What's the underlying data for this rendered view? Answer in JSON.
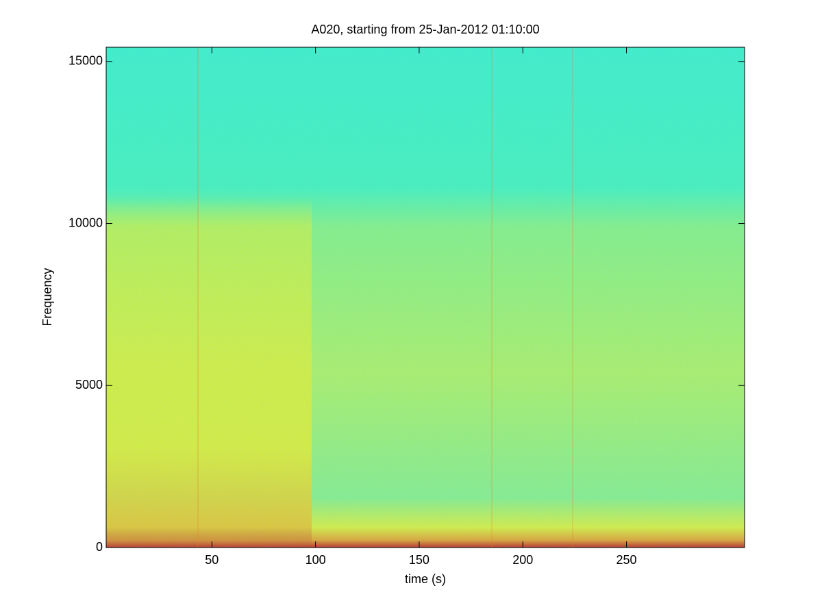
{
  "chart_data": {
    "type": "spectrogram",
    "title": "A020, starting from 25-Jan-2012 01:10:00",
    "x_label": "time (s)",
    "y_label": "Frequency",
    "xlim": [
      -1,
      307
    ],
    "ylim": [
      0,
      15440
    ],
    "xticks": [
      50,
      100,
      150,
      200,
      250
    ],
    "yticks": [
      0,
      5000,
      10000,
      15000
    ]
  }
}
